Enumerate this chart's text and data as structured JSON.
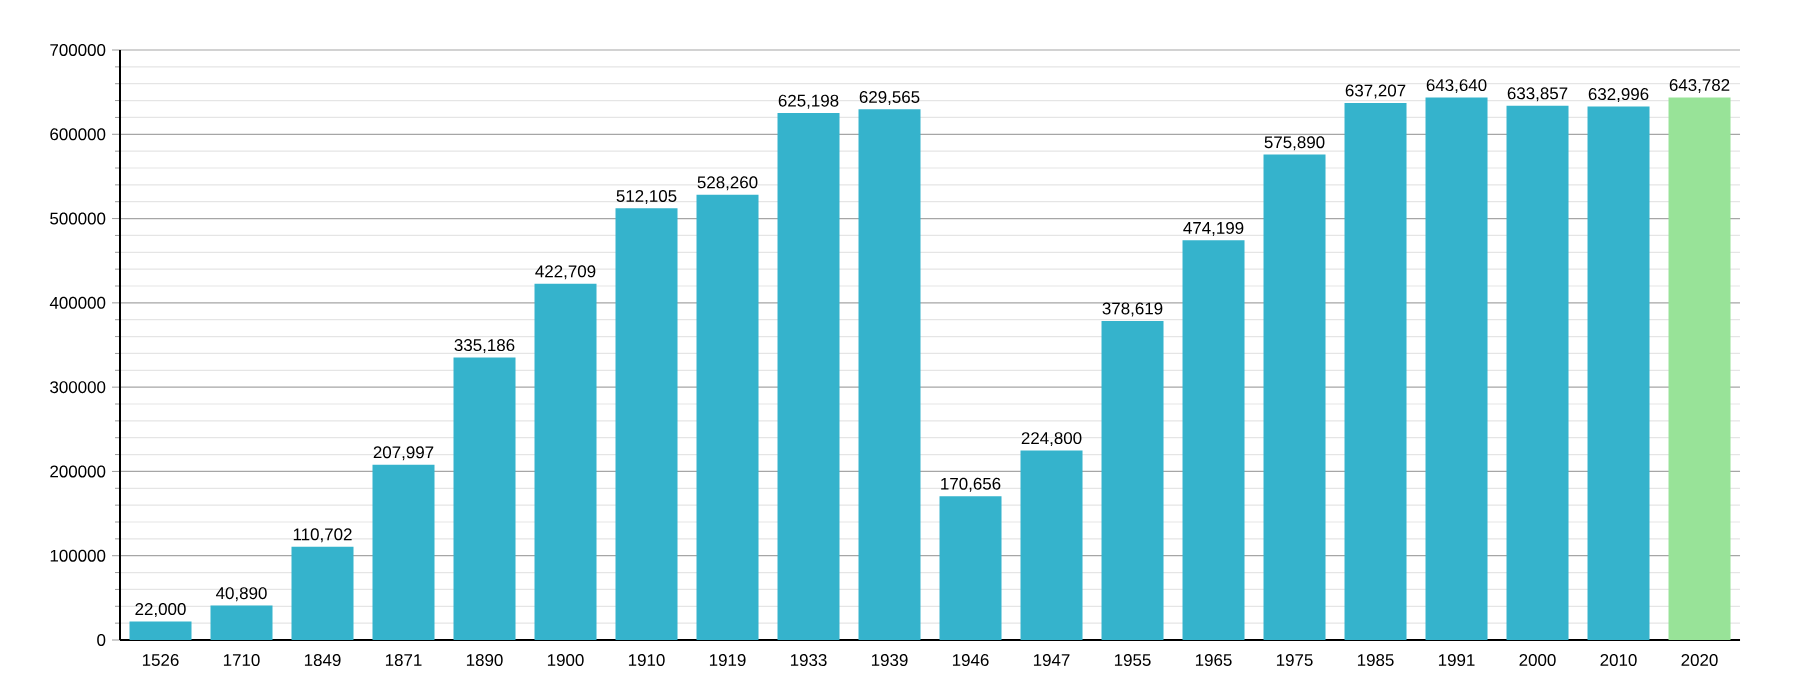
{
  "chart_data": {
    "type": "bar",
    "categories": [
      "1526",
      "1710",
      "1849",
      "1871",
      "1890",
      "1900",
      "1910",
      "1919",
      "1933",
      "1939",
      "1946",
      "1947",
      "1955",
      "1965",
      "1975",
      "1985",
      "1991",
      "2000",
      "2010",
      "2020"
    ],
    "values": [
      22000,
      40890,
      110702,
      207997,
      335186,
      422709,
      512105,
      528260,
      625198,
      629565,
      170656,
      224800,
      378619,
      474199,
      575890,
      637207,
      643640,
      633857,
      632996,
      643782
    ],
    "value_labels": [
      "22,000",
      "40,890",
      "110,702",
      "207,997",
      "335,186",
      "422,709",
      "512,105",
      "528,260",
      "625,198",
      "629,565",
      "170,656",
      "224,800",
      "378,619",
      "474,199",
      "575,890",
      "637,207",
      "643,640",
      "633,857",
      "632,996",
      "643,782"
    ],
    "colors": [
      "#35b3cc",
      "#35b3cc",
      "#35b3cc",
      "#35b3cc",
      "#35b3cc",
      "#35b3cc",
      "#35b3cc",
      "#35b3cc",
      "#35b3cc",
      "#35b3cc",
      "#35b3cc",
      "#35b3cc",
      "#35b3cc",
      "#35b3cc",
      "#35b3cc",
      "#35b3cc",
      "#35b3cc",
      "#35b3cc",
      "#35b3cc",
      "#98e398"
    ],
    "ylim": [
      0,
      700000
    ],
    "yticks": [
      0,
      100000,
      200000,
      300000,
      400000,
      500000,
      600000,
      700000
    ],
    "grid": "y"
  }
}
